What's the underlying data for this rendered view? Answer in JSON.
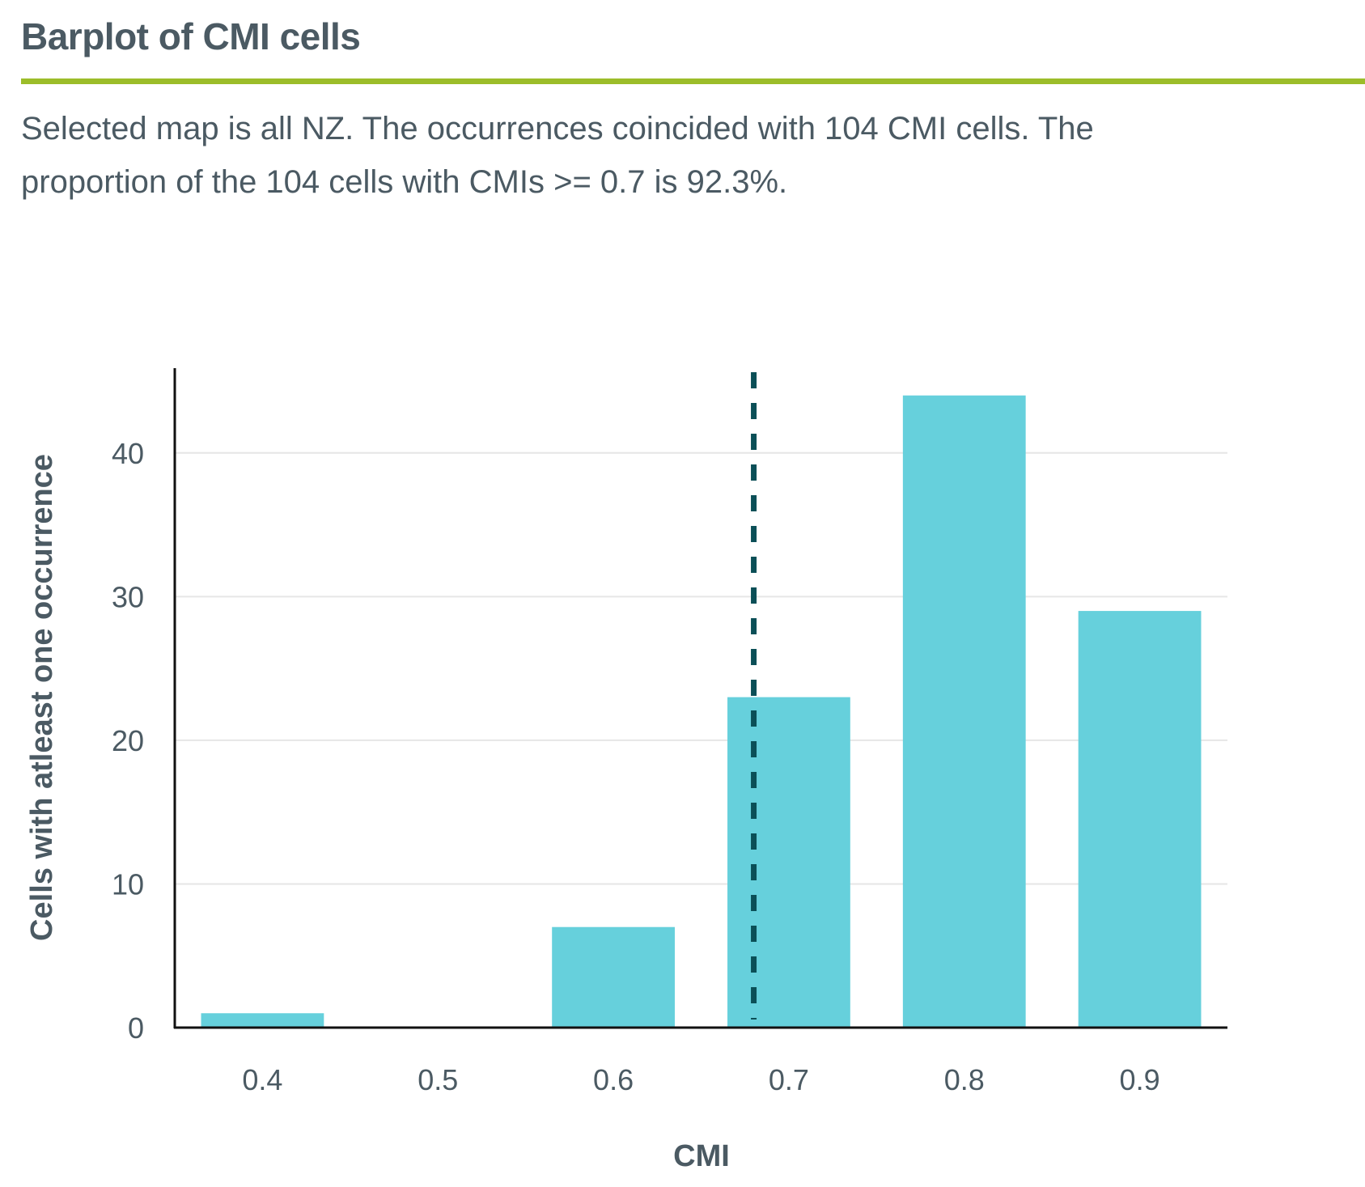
{
  "header": {
    "title": "Barplot of CMI cells",
    "accent_color": "#9cbd2a"
  },
  "summary": {
    "line1": "Selected map is all NZ. The occurrences coincided with 104 CMI cells. The",
    "line2": "proportion of the 104 cells with CMIs >= 0.7 is 92.3%."
  },
  "chart_data": {
    "type": "bar",
    "categories": [
      "0.4",
      "0.5",
      "0.6",
      "0.7",
      "0.8",
      "0.9"
    ],
    "values": [
      1,
      0,
      7,
      23,
      44,
      29
    ],
    "xlabel": "CMI",
    "ylabel": "Cells with atleast one occurrence",
    "ylim": [
      0,
      45.9
    ],
    "yticks": [
      0,
      10,
      20,
      30,
      40
    ],
    "grid": true,
    "bar_color": "#66d0dc",
    "reference_line": {
      "x": 0.68,
      "style": "dashed",
      "color": "#0b4f57"
    }
  }
}
